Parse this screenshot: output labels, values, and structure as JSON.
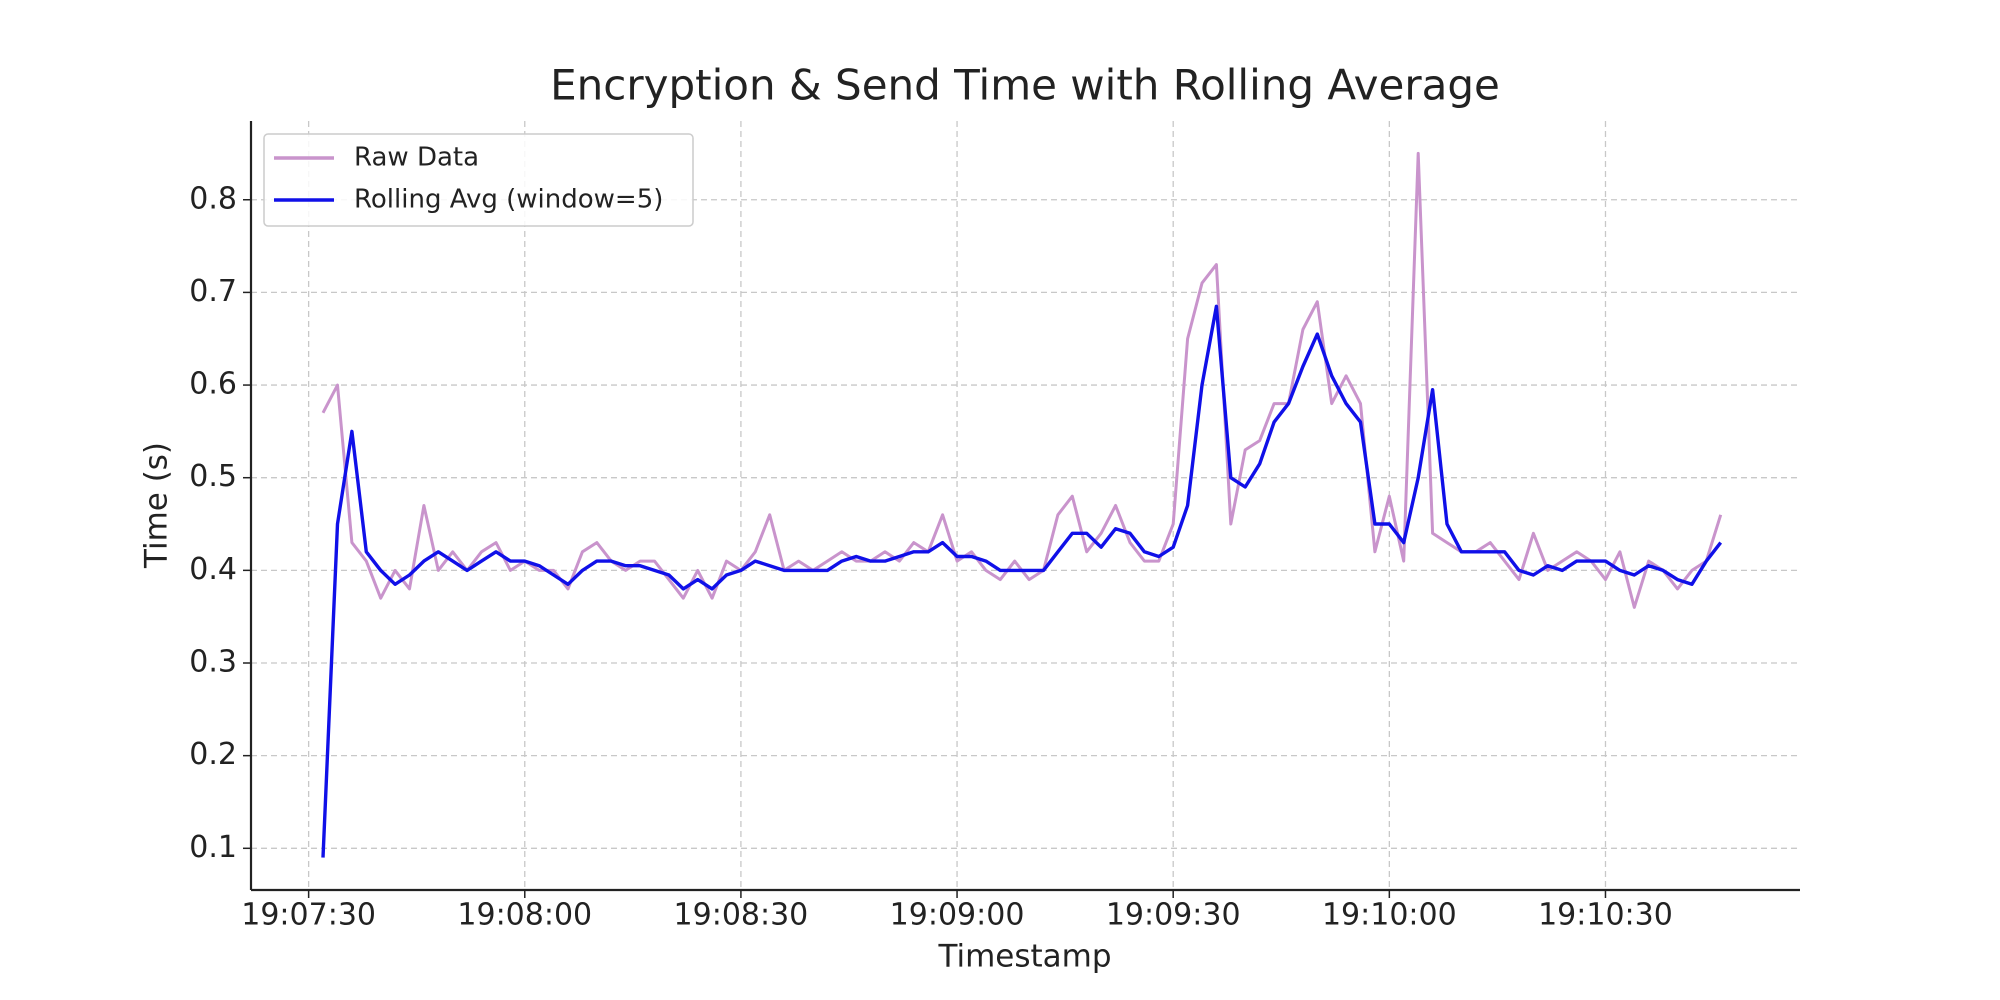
{
  "chart_data": {
    "type": "line",
    "title": "Encryption & Send Time with Rolling Average",
    "xlabel": "Timestamp",
    "ylabel": "Time (s)",
    "x": [
      "19:07:32",
      "19:07:34",
      "19:07:36",
      "19:07:38",
      "19:07:40",
      "19:07:42",
      "19:07:44",
      "19:07:46",
      "19:07:48",
      "19:07:50",
      "19:07:52",
      "19:07:54",
      "19:07:56",
      "19:07:58",
      "19:08:00",
      "19:08:02",
      "19:08:04",
      "19:08:06",
      "19:08:08",
      "19:08:10",
      "19:08:12",
      "19:08:14",
      "19:08:16",
      "19:08:18",
      "19:08:20",
      "19:08:22",
      "19:08:24",
      "19:08:26",
      "19:08:28",
      "19:08:30",
      "19:08:32",
      "19:08:34",
      "19:08:36",
      "19:08:38",
      "19:08:40",
      "19:08:42",
      "19:08:44",
      "19:08:46",
      "19:08:48",
      "19:08:50",
      "19:08:52",
      "19:08:54",
      "19:08:56",
      "19:08:58",
      "19:09:00",
      "19:09:02",
      "19:09:04",
      "19:09:06",
      "19:09:08",
      "19:09:10",
      "19:09:12",
      "19:09:14",
      "19:09:16",
      "19:09:18",
      "19:09:20",
      "19:09:22",
      "19:09:24",
      "19:09:26",
      "19:09:28",
      "19:09:30",
      "19:09:32",
      "19:09:34",
      "19:09:36",
      "19:09:38",
      "19:09:40",
      "19:09:42",
      "19:09:44",
      "19:09:46",
      "19:09:48",
      "19:09:50",
      "19:09:52",
      "19:09:54",
      "19:09:56",
      "19:09:58",
      "19:10:00",
      "19:10:02",
      "19:10:04",
      "19:10:06",
      "19:10:08",
      "19:10:10",
      "19:10:12",
      "19:10:14",
      "19:10:16",
      "19:10:18",
      "19:10:20",
      "19:10:22",
      "19:10:24",
      "19:10:26",
      "19:10:28",
      "19:10:30",
      "19:10:32",
      "19:10:34",
      "19:10:36",
      "19:10:38",
      "19:10:40",
      "19:10:42",
      "19:10:44",
      "19:10:46"
    ],
    "series": [
      {
        "name": "Raw Data",
        "color": "#c994cc",
        "values": [
          0.57,
          0.6,
          0.43,
          0.41,
          0.37,
          0.4,
          0.38,
          0.47,
          0.4,
          0.42,
          0.4,
          0.42,
          0.43,
          0.4,
          0.41,
          0.4,
          0.4,
          0.38,
          0.42,
          0.43,
          0.41,
          0.4,
          0.41,
          0.41,
          0.39,
          0.37,
          0.4,
          0.37,
          0.41,
          0.4,
          0.42,
          0.46,
          0.4,
          0.41,
          0.4,
          0.41,
          0.42,
          0.41,
          0.41,
          0.42,
          0.41,
          0.43,
          0.42,
          0.46,
          0.41,
          0.42,
          0.4,
          0.39,
          0.41,
          0.39,
          0.4,
          0.46,
          0.48,
          0.42,
          0.44,
          0.47,
          0.43,
          0.41,
          0.41,
          0.45,
          0.65,
          0.71,
          0.73,
          0.45,
          0.53,
          0.54,
          0.58,
          0.58,
          0.66,
          0.69,
          0.58,
          0.61,
          0.58,
          0.42,
          0.48,
          0.41,
          0.85,
          0.44,
          0.43,
          0.42,
          0.42,
          0.43,
          0.41,
          0.39,
          0.44,
          0.4,
          0.41,
          0.42,
          0.41,
          0.39,
          0.42,
          0.36,
          0.41,
          0.4,
          0.38,
          0.4,
          0.41,
          0.46
        ]
      },
      {
        "name": "Rolling Avg (window=5)",
        "color": "#1010e8",
        "values": [
          0.09,
          0.45,
          0.55,
          0.42,
          0.4,
          0.385,
          0.395,
          0.41,
          0.42,
          0.41,
          0.4,
          0.41,
          0.42,
          0.41,
          0.41,
          0.405,
          0.395,
          0.385,
          0.4,
          0.41,
          0.41,
          0.405,
          0.405,
          0.4,
          0.395,
          0.38,
          0.39,
          0.38,
          0.395,
          0.4,
          0.41,
          0.405,
          0.4,
          0.4,
          0.4,
          0.4,
          0.41,
          0.415,
          0.41,
          0.41,
          0.415,
          0.42,
          0.42,
          0.43,
          0.415,
          0.415,
          0.41,
          0.4,
          0.4,
          0.4,
          0.4,
          0.42,
          0.44,
          0.44,
          0.425,
          0.445,
          0.44,
          0.42,
          0.415,
          0.425,
          0.47,
          0.6,
          0.685,
          0.5,
          0.49,
          0.515,
          0.56,
          0.58,
          0.62,
          0.655,
          0.61,
          0.58,
          0.56,
          0.45,
          0.45,
          0.43,
          0.5,
          0.595,
          0.45,
          0.42,
          0.42,
          0.42,
          0.42,
          0.4,
          0.395,
          0.405,
          0.4,
          0.41,
          0.41,
          0.41,
          0.4,
          0.395,
          0.405,
          0.4,
          0.39,
          0.385,
          0.41,
          0.43
        ]
      }
    ],
    "xlim": [
      "19:07:22",
      "19:10:57"
    ],
    "xticks": [
      "19:07:30",
      "19:08:00",
      "19:08:30",
      "19:09:00",
      "19:09:30",
      "19:10:00",
      "19:10:30"
    ],
    "ylim": [
      0.055,
      0.885
    ],
    "yticks": [
      0.1,
      0.2,
      0.3,
      0.4,
      0.5,
      0.6,
      0.7,
      0.8
    ],
    "grid": true,
    "legend": "upper left"
  }
}
